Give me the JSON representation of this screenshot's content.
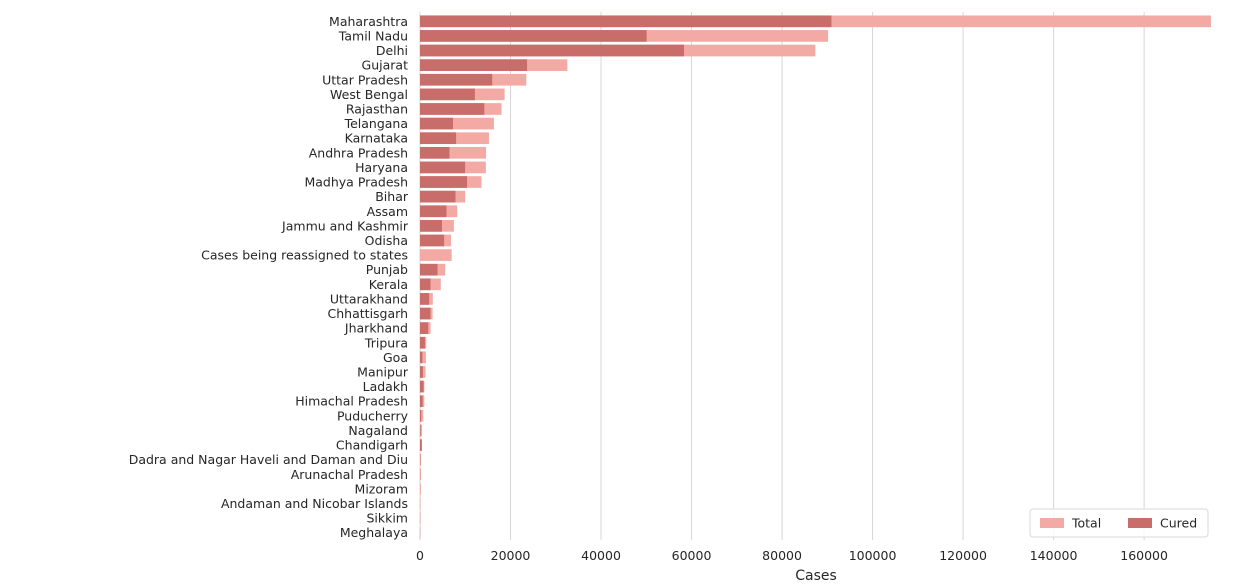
{
  "chart_data": {
    "type": "bar",
    "orientation": "horizontal",
    "title": "",
    "xlabel": "Cases",
    "ylabel": "",
    "xlim": [
      0,
      175000
    ],
    "xticks": [
      0,
      20000,
      40000,
      60000,
      80000,
      100000,
      120000,
      140000,
      160000
    ],
    "grid": "vertical",
    "legend_position": "bottom-right",
    "categories": [
      "Maharashtra",
      "Tamil Nadu",
      "Delhi",
      "Gujarat",
      "Uttar Pradesh",
      "West Bengal",
      "Rajasthan",
      "Telangana",
      "Karnataka",
      "Andhra Pradesh",
      "Haryana",
      "Madhya Pradesh",
      "Bihar",
      "Assam",
      "Jammu and Kashmir",
      "Odisha",
      "Cases being reassigned to states",
      "Punjab",
      "Kerala",
      "Uttarakhand",
      "Chhattisgarh",
      "Jharkhand",
      "Tripura",
      "Goa",
      "Manipur",
      "Ladakh",
      "Himachal Pradesh",
      "Puducherry",
      "Nagaland",
      "Chandigarh",
      "Dadra and Nagar Haveli and Daman and Diu",
      "Arunachal Pradesh",
      "Mizoram",
      "Andaman and Nicobar Islands",
      "Sikkim",
      "Meghalaya"
    ],
    "series": [
      {
        "name": "Total",
        "color": "#f4aaa4",
        "values": [
          174761,
          90167,
          87360,
          32557,
          23492,
          18693,
          18014,
          16339,
          15242,
          14595,
          14548,
          13593,
          9988,
          8227,
          7497,
          6859,
          7000,
          5568,
          4593,
          2831,
          2795,
          2339,
          1396,
          1315,
          1227,
          964,
          953,
          714,
          451,
          446,
          215,
          187,
          148,
          90,
          88,
          50
        ]
      },
      {
        "name": "Cured",
        "color": "#c86d6a",
        "values": [
          90911,
          50074,
          58348,
          23662,
          15960,
          12130,
          14218,
          7294,
          7973,
          6511,
          9972,
          10395,
          7839,
          5858,
          4856,
          5328,
          0,
          3867,
          2327,
          2024,
          2308,
          1806,
          1096,
          523,
          634,
          795,
          587,
          255,
          151,
          380,
          67,
          64,
          57,
          33,
          45,
          42
        ]
      }
    ]
  }
}
